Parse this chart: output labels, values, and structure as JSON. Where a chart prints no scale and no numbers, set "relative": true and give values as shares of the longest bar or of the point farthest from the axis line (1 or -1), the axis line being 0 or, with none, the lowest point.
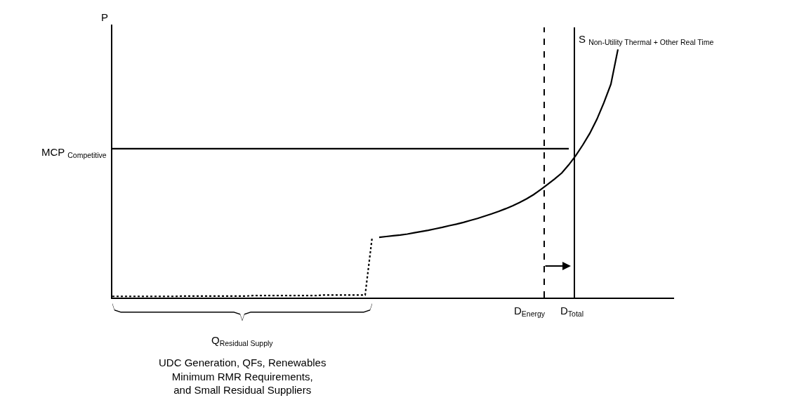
{
  "chart_data": {
    "type": "line",
    "relative": true,
    "ylabel": "P",
    "grid": false,
    "categories": [
      null,
      null,
      null,
      null,
      null,
      null,
      null,
      null,
      null,
      null,
      null,
      null,
      null,
      null,
      null,
      null,
      null,
      null,
      null,
      null,
      null,
      null,
      null,
      null,
      null,
      null,
      null,
      null,
      null,
      null,
      null,
      null,
      null,
      null,
      null,
      null,
      null,
      null,
      null,
      null,
      null,
      null,
      null,
      null,
      null,
      null,
      null,
      null,
      null,
      null,
      null,
      null,
      null,
      null,
      null,
      null,
      null,
      null,
      null,
      null,
      null,
      null,
      null,
      null,
      null,
      null,
      null,
      null,
      null,
      null,
      null,
      null,
      null,
      null,
      null,
      null,
      null,
      null,
      null,
      null,
      null
    ],
    "series": [
      {
        "color": "#000000",
        "line_style": "dotted",
        "values": [
          0.005,
          0.005,
          0.005,
          0.005,
          0.005,
          0.005,
          0.005,
          0.005,
          0.005,
          0.005,
          0.006,
          0.006,
          0.006,
          0.006,
          0.006,
          0.006,
          0.006,
          0.006,
          0.006,
          0.006,
          0.008,
          0.008,
          0.008,
          0.008,
          0.008,
          0.008,
          0.008,
          0.008,
          0.008,
          0.008,
          0.01,
          0.01,
          0.01,
          0.01,
          0.01,
          0.01,
          0.01,
          0.243,
          null,
          null,
          null,
          null,
          null,
          null,
          null,
          null,
          null,
          null,
          null,
          null,
          null,
          null,
          null,
          null,
          null,
          null,
          null,
          null,
          null,
          null,
          null,
          null,
          null,
          null,
          null,
          null,
          null,
          null,
          null,
          null,
          null,
          null,
          null,
          null,
          null,
          null,
          null,
          null,
          null,
          null,
          null
        ]
      },
      {
        "color": "#000000",
        "line_style": "solid",
        "values": [
          null,
          null,
          null,
          null,
          null,
          null,
          null,
          null,
          null,
          null,
          null,
          null,
          null,
          null,
          null,
          null,
          null,
          null,
          null,
          null,
          null,
          null,
          null,
          null,
          null,
          null,
          null,
          null,
          null,
          null,
          null,
          null,
          null,
          null,
          null,
          null,
          null,
          null,
          0.243,
          0.246,
          0.249,
          0.252,
          0.256,
          0.261,
          0.266,
          0.271,
          0.277,
          0.283,
          0.29,
          0.296,
          0.303,
          0.311,
          0.319,
          0.328,
          0.337,
          0.347,
          0.358,
          0.37,
          0.383,
          0.398,
          0.415,
          0.435,
          0.456,
          0.478,
          0.502,
          0.535,
          0.572,
          0.615,
          0.662,
          0.718,
          0.785,
          0.86,
          1.0,
          null,
          null,
          null,
          null,
          null,
          null,
          null,
          null
        ]
      },
      {
        "color": "#000000",
        "line_style": "solid",
        "values": [
          0.6,
          0.6,
          0.6,
          0.6,
          0.6,
          0.6,
          0.6,
          0.6,
          0.6,
          0.6,
          0.6,
          0.6,
          0.6,
          0.6,
          0.6,
          0.6,
          0.6,
          0.6,
          0.6,
          0.6,
          0.6,
          0.6,
          0.6,
          0.6,
          0.6,
          0.6,
          0.6,
          0.6,
          0.6,
          0.6,
          0.6,
          0.6,
          0.6,
          0.6,
          0.6,
          0.6,
          0.6,
          0.6,
          0.6,
          0.6,
          0.6,
          0.6,
          0.6,
          0.6,
          0.6,
          0.6,
          0.6,
          0.6,
          0.6,
          0.6,
          0.6,
          0.6,
          0.6,
          0.6,
          0.6,
          0.6,
          0.6,
          0.6,
          0.6,
          0.6,
          0.6,
          0.6,
          0.6,
          0.6,
          0.6,
          0.6,
          null,
          null,
          null,
          null,
          null,
          null,
          null,
          null,
          null,
          null,
          null,
          null,
          null,
          null,
          null
        ]
      }
    ],
    "annotations": [
      "D$_{Energy}$",
      "D$_{Total}$",
      "MCP $_{Competitive}$",
      "S $_{Non-Utility Thermal + Other Real Time}$",
      "Q$_{Residual Supply}$",
      "UDC Generation, QFs, Renewables\nMinimum RMR Requirements,\nand Small Residual Suppliers"
    ]
  }
}
